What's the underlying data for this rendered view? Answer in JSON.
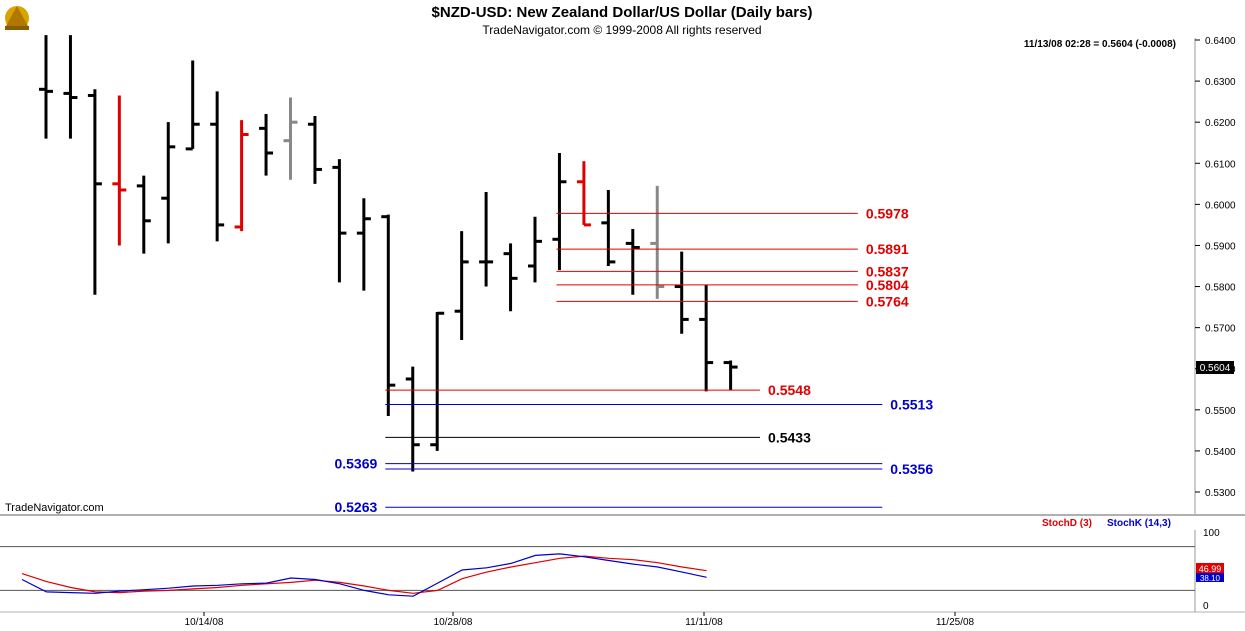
{
  "header": {
    "title": "$NZD-USD:  New Zealand Dollar/US Dollar  (Daily bars)",
    "copyright": "TradeNavigator.com © 1999-2008 All rights reserved",
    "quote": "11/13/08 02:28 = 0.5604 (-0.0008)",
    "watermark": "TradeNavigator.com",
    "last_price_label": "0.5604"
  },
  "colors": {
    "bar_default": "#000000",
    "bar_red": "#e00000",
    "bar_gray": "#888888",
    "level_red": "#e00000",
    "level_blue": "#0000cc",
    "level_black": "#000000",
    "stoch_d": "#e00000",
    "stoch_k": "#0000cc"
  },
  "chart_data": [
    {
      "type": "ohlc",
      "y_ticks": [
        "0.6400",
        "0.6300",
        "0.6200",
        "0.6100",
        "0.6000",
        "0.5900",
        "0.5800",
        "0.5700",
        "0.5600",
        "0.5500",
        "0.5400",
        "0.5300"
      ],
      "x_ticks": [
        "10/14/08",
        "10/28/08",
        "11/11/08",
        "11/25/08"
      ],
      "ylim": [
        0.5245,
        0.6412
      ],
      "bars": [
        {
          "open": 0.628,
          "high": 0.6412,
          "low": 0.616,
          "close": 0.6275,
          "color": "black"
        },
        {
          "open": 0.627,
          "high": 0.6412,
          "low": 0.616,
          "close": 0.626,
          "color": "black"
        },
        {
          "open": 0.6265,
          "high": 0.628,
          "low": 0.578,
          "close": 0.605,
          "color": "black"
        },
        {
          "open": 0.605,
          "high": 0.6265,
          "low": 0.59,
          "close": 0.6035,
          "color": "red"
        },
        {
          "open": 0.6045,
          "high": 0.607,
          "low": 0.588,
          "close": 0.596,
          "color": "black"
        },
        {
          "open": 0.6015,
          "high": 0.62,
          "low": 0.5905,
          "close": 0.614,
          "color": "black"
        },
        {
          "open": 0.6135,
          "high": 0.635,
          "low": 0.6135,
          "close": 0.6195,
          "color": "black"
        },
        {
          "open": 0.6195,
          "high": 0.6275,
          "low": 0.591,
          "close": 0.595,
          "color": "black"
        },
        {
          "open": 0.5945,
          "high": 0.6205,
          "low": 0.5935,
          "close": 0.617,
          "color": "red"
        },
        {
          "open": 0.6185,
          "high": 0.622,
          "low": 0.607,
          "close": 0.6125,
          "color": "black"
        },
        {
          "open": 0.6155,
          "high": 0.626,
          "low": 0.606,
          "close": 0.62,
          "color": "gray"
        },
        {
          "open": 0.6195,
          "high": 0.6215,
          "low": 0.605,
          "close": 0.6085,
          "color": "black"
        },
        {
          "open": 0.609,
          "high": 0.611,
          "low": 0.581,
          "close": 0.593,
          "color": "black"
        },
        {
          "open": 0.593,
          "high": 0.6015,
          "low": 0.579,
          "close": 0.5965,
          "color": "black"
        },
        {
          "open": 0.597,
          "high": 0.5975,
          "low": 0.5485,
          "close": 0.556,
          "color": "black"
        },
        {
          "open": 0.5575,
          "high": 0.5605,
          "low": 0.535,
          "close": 0.5415,
          "color": "black"
        },
        {
          "open": 0.5415,
          "high": 0.5738,
          "low": 0.54,
          "close": 0.5735,
          "color": "black"
        },
        {
          "open": 0.574,
          "high": 0.5935,
          "low": 0.567,
          "close": 0.586,
          "color": "black"
        },
        {
          "open": 0.586,
          "high": 0.603,
          "low": 0.58,
          "close": 0.586,
          "color": "black"
        },
        {
          "open": 0.588,
          "high": 0.5905,
          "low": 0.574,
          "close": 0.582,
          "color": "black"
        },
        {
          "open": 0.585,
          "high": 0.597,
          "low": 0.581,
          "close": 0.591,
          "color": "black"
        },
        {
          "open": 0.5915,
          "high": 0.6125,
          "low": 0.584,
          "close": 0.6055,
          "color": "black"
        },
        {
          "open": 0.6055,
          "high": 0.6105,
          "low": 0.595,
          "close": 0.595,
          "color": "red"
        },
        {
          "open": 0.5955,
          "high": 0.6035,
          "low": 0.585,
          "close": 0.586,
          "color": "black"
        },
        {
          "open": 0.5905,
          "high": 0.594,
          "low": 0.578,
          "close": 0.5895,
          "color": "black"
        },
        {
          "open": 0.5905,
          "high": 0.6045,
          "low": 0.577,
          "close": 0.58,
          "color": "gray"
        },
        {
          "open": 0.58,
          "high": 0.5885,
          "low": 0.5685,
          "close": 0.572,
          "color": "black"
        },
        {
          "open": 0.572,
          "high": 0.5805,
          "low": 0.5545,
          "close": 0.5615,
          "color": "black"
        },
        {
          "open": 0.5615,
          "high": 0.562,
          "low": 0.5548,
          "close": 0.5604,
          "color": "black"
        }
      ],
      "levels": [
        {
          "value": 0.5978,
          "label": "0.5978",
          "color": "red",
          "from_bar": 21,
          "to_bar": 33,
          "label_side": "right"
        },
        {
          "value": 0.5891,
          "label": "0.5891",
          "color": "red",
          "from_bar": 21,
          "to_bar": 33,
          "label_side": "right"
        },
        {
          "value": 0.5837,
          "label": "0.5837",
          "color": "red",
          "from_bar": 21,
          "to_bar": 33,
          "label_side": "right"
        },
        {
          "value": 0.5804,
          "label": "0.5804",
          "color": "red",
          "from_bar": 21,
          "to_bar": 33,
          "label_side": "right"
        },
        {
          "value": 0.5764,
          "label": "0.5764",
          "color": "red",
          "from_bar": 21,
          "to_bar": 33,
          "label_side": "right"
        },
        {
          "value": 0.5548,
          "label": "0.5548",
          "color": "red",
          "from_bar": 14,
          "to_bar": 29,
          "label_side": "right"
        },
        {
          "value": 0.5513,
          "label": "0.5513",
          "color": "blue",
          "from_bar": 14,
          "to_bar": 34,
          "label_side": "right"
        },
        {
          "value": 0.5433,
          "label": "0.5433",
          "color": "black",
          "from_bar": 14,
          "to_bar": 29,
          "label_side": "right"
        },
        {
          "value": 0.5369,
          "label": "0.5369",
          "color": "blue",
          "from_bar": 14,
          "to_bar": 34,
          "label_side": "left"
        },
        {
          "value": 0.5356,
          "label": "0.5356",
          "color": "blue",
          "from_bar": 14,
          "to_bar": 34,
          "label_side": "right"
        },
        {
          "value": 0.5263,
          "label": "0.5263",
          "color": "blue",
          "from_bar": 14,
          "to_bar": 34,
          "label_side": "left"
        }
      ]
    },
    {
      "type": "line",
      "legend": [
        "StochD (3)",
        "StochK (14,3)"
      ],
      "y_ticks": [
        "100",
        "0"
      ],
      "ylim": [
        0,
        100
      ],
      "guide_lines": [
        80,
        20
      ],
      "last_values": {
        "d": "46.99",
        "k": "38.10"
      },
      "series": [
        {
          "name": "StochD (3)",
          "color": "red",
          "values": [
            43,
            32,
            24,
            18,
            17,
            19,
            20,
            22,
            24,
            27,
            29,
            31,
            34,
            31,
            26,
            20,
            16,
            20,
            36,
            45,
            52,
            58,
            64,
            67,
            64,
            62,
            58,
            52,
            47
          ]
        },
        {
          "name": "StochK (14,3)",
          "color": "blue",
          "values": [
            35,
            18,
            17,
            16,
            19,
            21,
            23,
            26,
            27,
            29,
            30,
            37,
            35,
            29,
            20,
            14,
            12,
            30,
            48,
            51,
            57,
            68,
            70,
            66,
            61,
            56,
            52,
            45,
            38
          ]
        }
      ]
    }
  ]
}
